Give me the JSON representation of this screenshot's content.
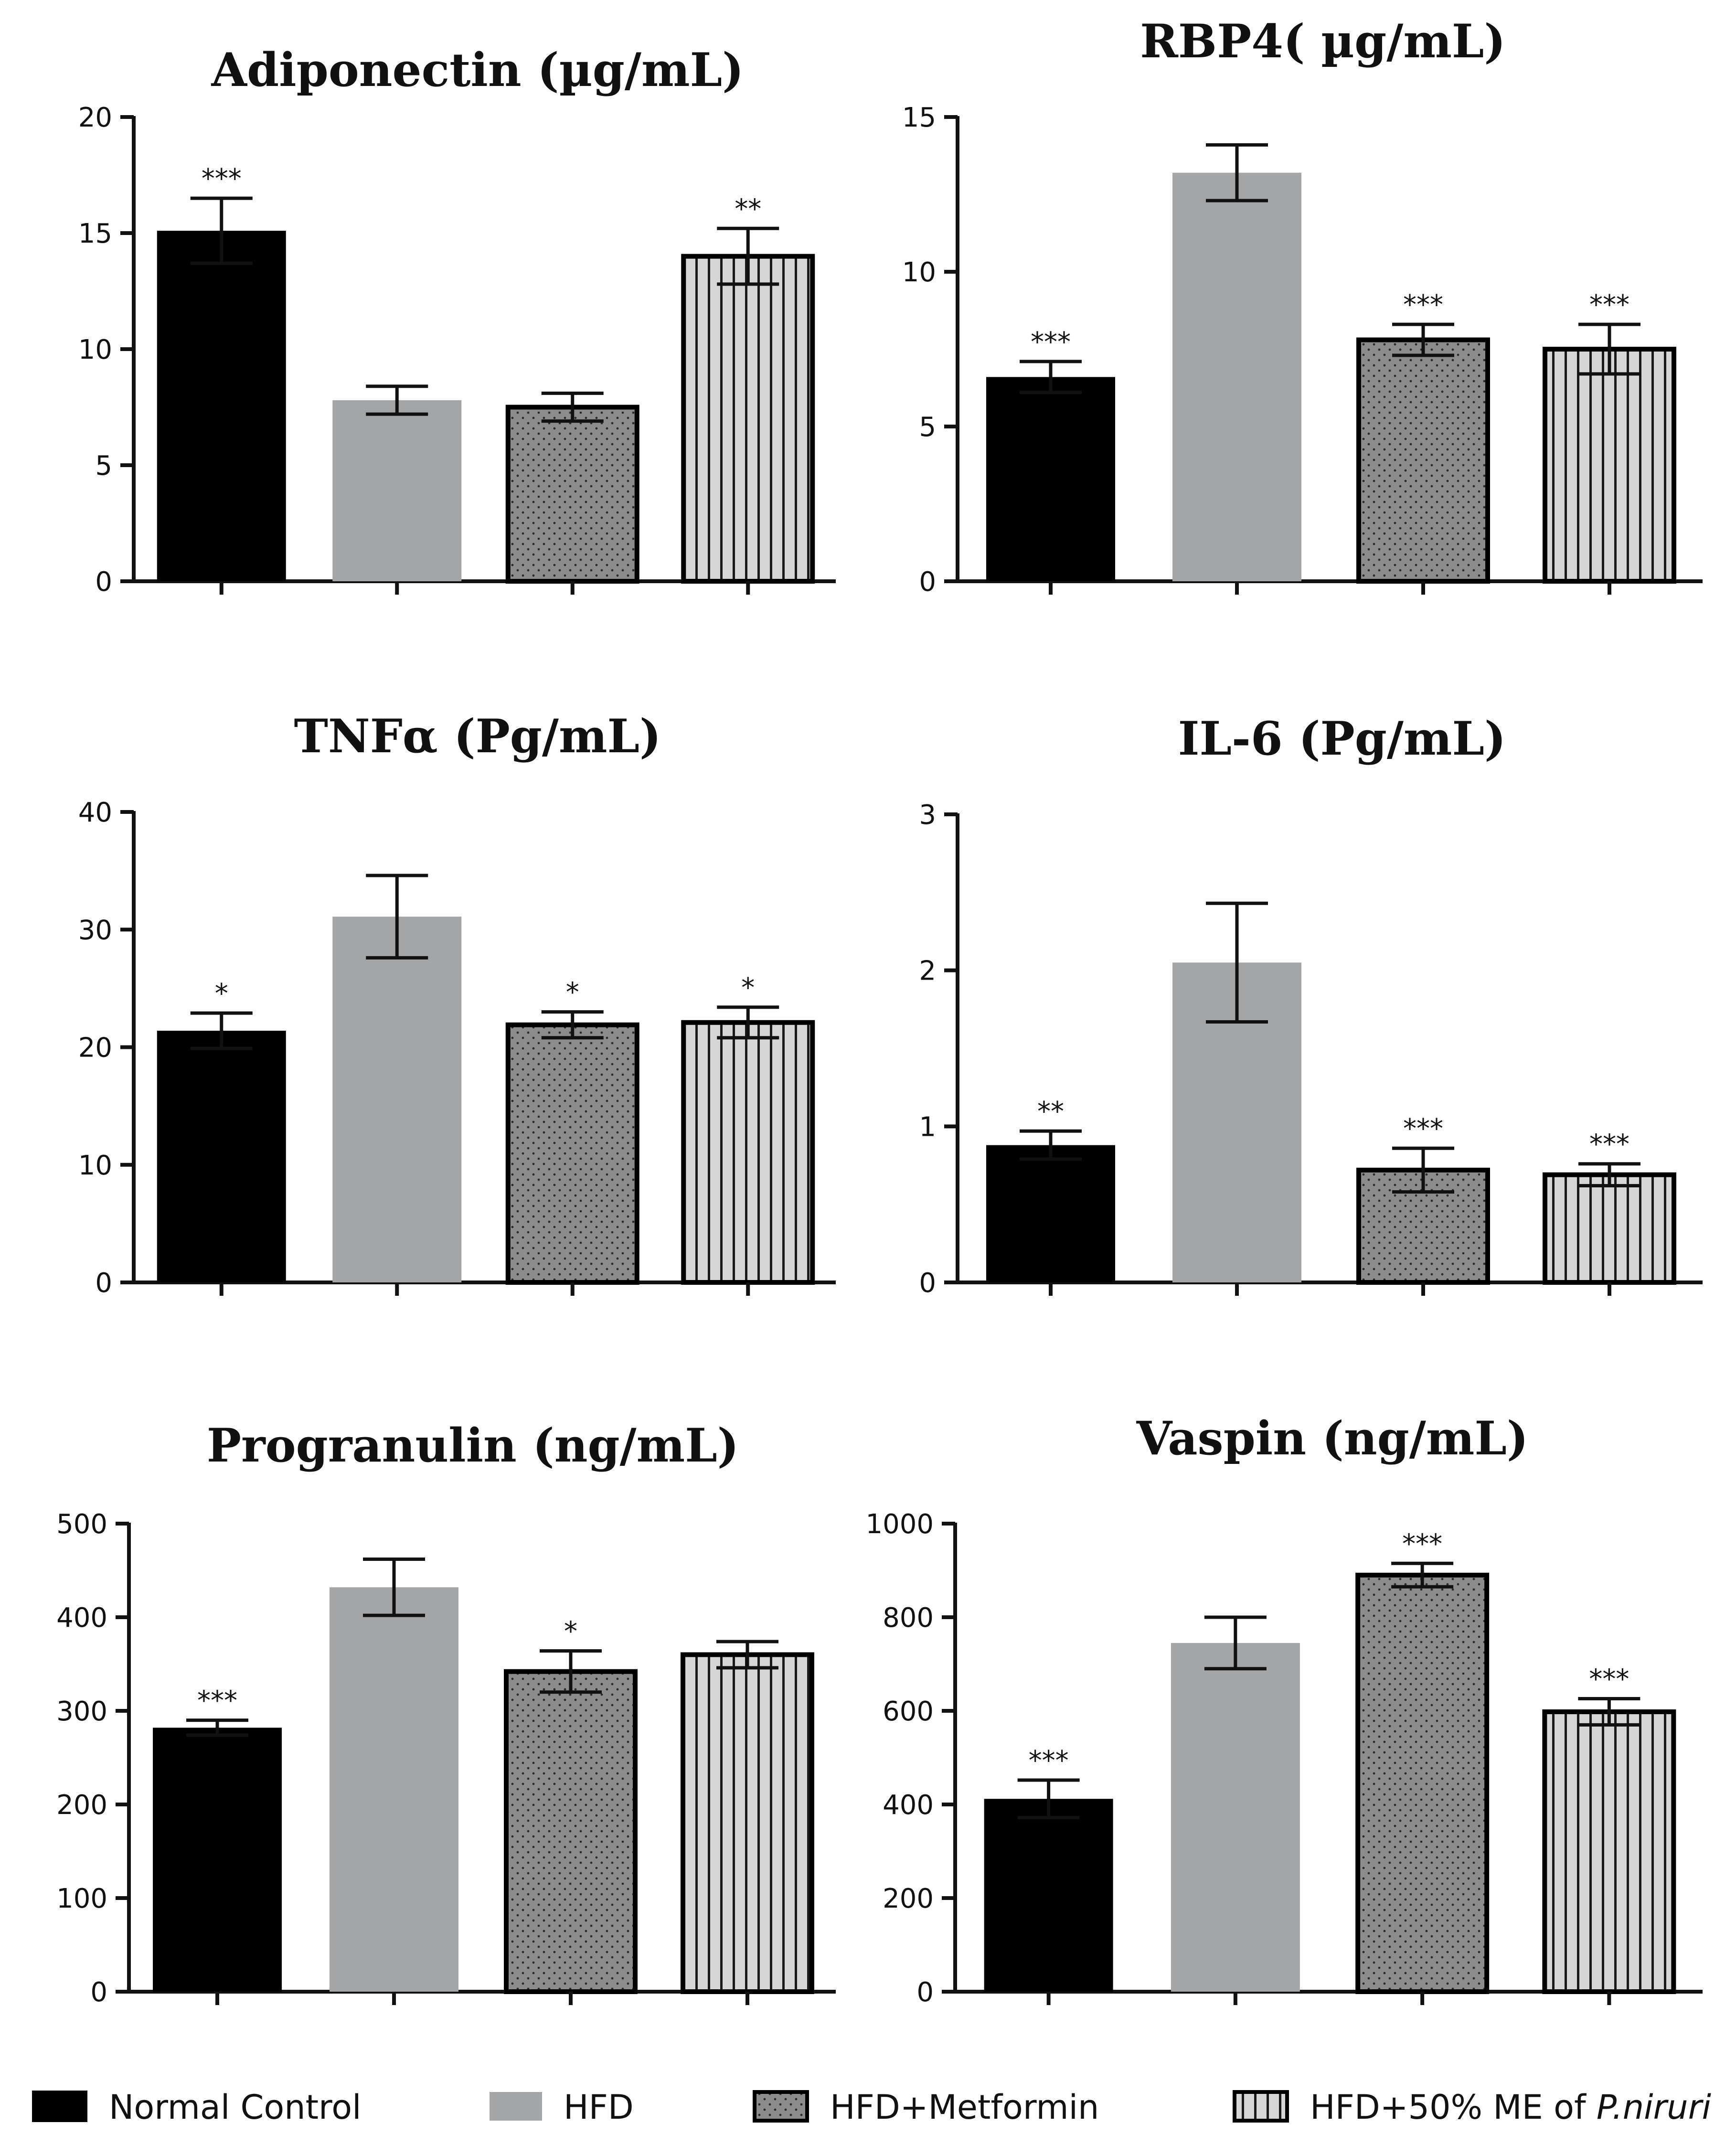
{
  "chart_data": [
    {
      "type": "bar",
      "title": "Adiponectin (µg/mL)",
      "ylim": [
        0,
        20
      ],
      "yticks": [
        "0",
        "5",
        "10",
        "15",
        "20"
      ],
      "categories": [
        "Normal Control",
        "HFD",
        "HFD+Metformin",
        "HFD+50% ME of P.niruri"
      ],
      "values": [
        15.1,
        7.8,
        7.5,
        14.0
      ],
      "errors": [
        1.4,
        0.6,
        0.6,
        1.2
      ],
      "significance": [
        "***",
        "",
        "",
        "**"
      ]
    },
    {
      "type": "bar",
      "title": "RBP4( µg/mL)",
      "ylim": [
        0,
        15
      ],
      "yticks": [
        "0",
        "5",
        "10",
        "15"
      ],
      "categories": [
        "Normal Control",
        "HFD",
        "HFD+Metformin",
        "HFD+50% ME of P.niruri"
      ],
      "values": [
        6.6,
        13.2,
        7.8,
        7.5
      ],
      "errors": [
        0.5,
        0.9,
        0.5,
        0.8
      ],
      "significance": [
        "***",
        "",
        "***",
        "***"
      ]
    },
    {
      "type": "bar",
      "title": "TNFα (Pg/mL)",
      "ylim": [
        0,
        40
      ],
      "yticks": [
        "0",
        "10",
        "20",
        "30",
        "40"
      ],
      "categories": [
        "Normal Control",
        "HFD",
        "HFD+Metformin",
        "HFD+50% ME of P.niruri"
      ],
      "values": [
        21.4,
        31.1,
        21.9,
        22.1
      ],
      "errors": [
        1.5,
        3.5,
        1.1,
        1.3
      ],
      "significance": [
        "*",
        "",
        "*",
        "*"
      ]
    },
    {
      "type": "bar",
      "title": "IL-6 (Pg/mL)",
      "ylim": [
        0,
        3
      ],
      "yticks": [
        "0",
        "1",
        "2",
        "3"
      ],
      "categories": [
        "Normal Control",
        "HFD",
        "HFD+Metformin",
        "HFD+50% ME of P.niruri"
      ],
      "values": [
        0.88,
        2.05,
        0.72,
        0.69
      ],
      "errors": [
        0.09,
        0.38,
        0.14,
        0.07
      ],
      "significance": [
        "**",
        "",
        "***",
        "***"
      ]
    },
    {
      "type": "bar",
      "title": "Progranulin (ng/mL)",
      "ylim": [
        0,
        500
      ],
      "yticks": [
        "0",
        "100",
        "200",
        "300",
        "400",
        "500"
      ],
      "categories": [
        "Normal Control",
        "HFD",
        "HFD+Metformin",
        "HFD+50% ME of P.niruri"
      ],
      "values": [
        282,
        432,
        342,
        360
      ],
      "errors": [
        8,
        30,
        22,
        14
      ],
      "significance": [
        "***",
        "",
        "*",
        ""
      ]
    },
    {
      "type": "bar",
      "title": "Vaspin (ng/mL)",
      "ylim": [
        0,
        1000
      ],
      "yticks": [
        "0",
        "200",
        "400",
        "600",
        "800",
        "1000"
      ],
      "categories": [
        "Normal Control",
        "HFD",
        "HFD+Metformin",
        "HFD+50% ME of P.niruri"
      ],
      "values": [
        412,
        745,
        890,
        598
      ],
      "errors": [
        40,
        55,
        25,
        28
      ],
      "significance": [
        "***",
        "",
        "***",
        "***"
      ]
    }
  ],
  "legend": [
    {
      "label": "Normal Control",
      "style": "black"
    },
    {
      "label": "HFD",
      "style": "gray"
    },
    {
      "label": "HFD+Metformin",
      "style": "dotted"
    },
    {
      "label": "HFD+50% ME of ",
      "label_italic": "P.niruri",
      "style": "striped"
    }
  ],
  "colors": {
    "black": "#000000",
    "gray": "#a3a5a7",
    "dotted": "#8c8c8c",
    "striped": "#d6d6d6",
    "axis": "#111111"
  }
}
